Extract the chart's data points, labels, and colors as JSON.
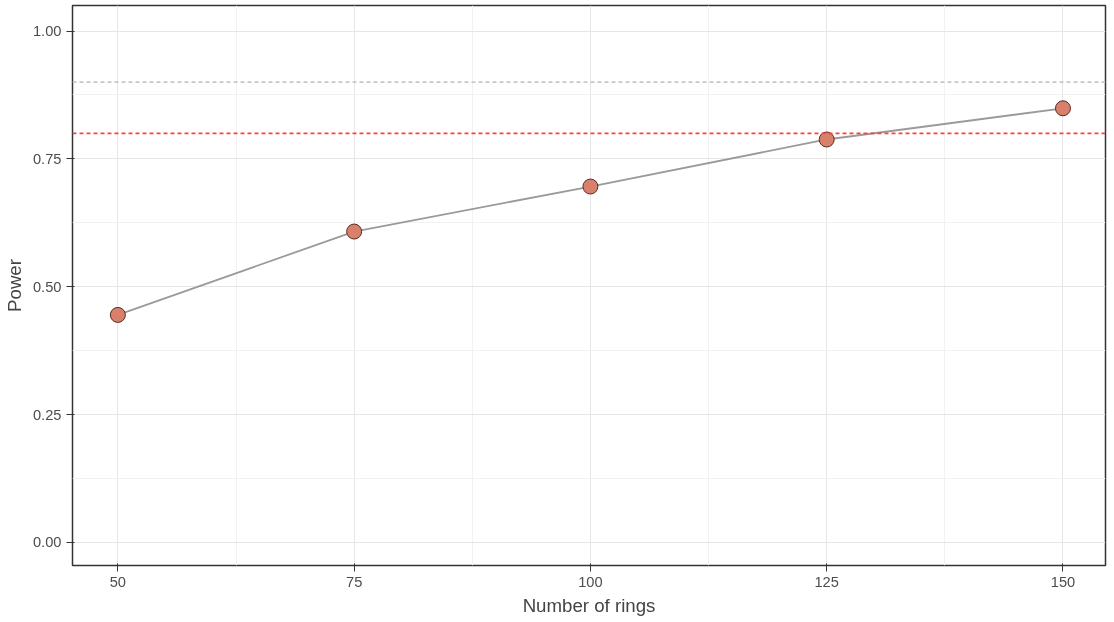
{
  "chart_data": {
    "type": "line",
    "xlabel": "Number of rings",
    "ylabel": "Power",
    "x": [
      50,
      75,
      100,
      125,
      150
    ],
    "series": [
      {
        "color": "#d9806c",
        "values": [
          0.445,
          0.608,
          0.696,
          0.788,
          0.849
        ]
      }
    ],
    "xlim": [
      45.2,
      154.5
    ],
    "ylim": [
      -0.045,
      1.05
    ],
    "xticks": [
      50,
      75,
      100,
      125,
      150
    ],
    "yticks": [
      {
        "value": 0,
        "label": "0.00"
      },
      {
        "value": 0.25,
        "label": "0.25"
      },
      {
        "value": 0.5,
        "label": "0.50"
      },
      {
        "value": 0.75,
        "label": "0.75"
      },
      {
        "value": 1,
        "label": "1.00"
      }
    ],
    "ref_lines": [
      {
        "axis": "y",
        "value": 0.9,
        "label": null,
        "color": "#c8c8c8",
        "line_style": "dashed"
      },
      {
        "axis": "y",
        "value": 0.8,
        "label": null,
        "color": "#ff4040",
        "line_style": "dashed"
      }
    ],
    "grid": true,
    "marker": "circle",
    "line_style": "solid"
  }
}
